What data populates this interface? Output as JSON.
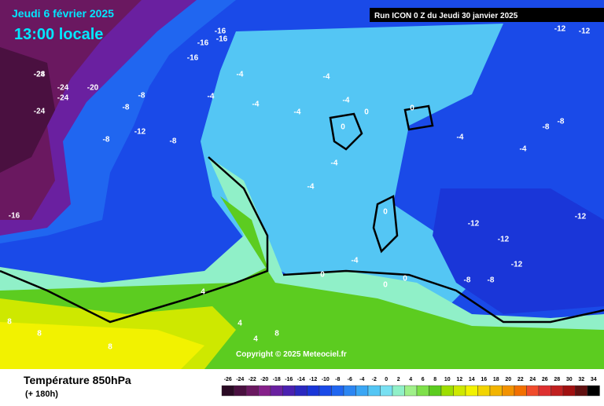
{
  "header": {
    "date": "Jeudi 6 février 2025",
    "time": "13:00 locale",
    "run": "Run ICON 0 Z du Jeudi 30 janvier 2025"
  },
  "copyright": "Copyright © 2025 Meteociel.fr",
  "footer": {
    "title": "Température 850hPa",
    "lead": "(+ 180h)"
  },
  "legend": {
    "labels": [
      "-26",
      "-24",
      "-22",
      "-20",
      "-18",
      "-16",
      "-14",
      "-12",
      "-10",
      "-8",
      "-6",
      "-4",
      "-2",
      "0",
      "2",
      "4",
      "6",
      "8",
      "10",
      "12",
      "14",
      "16",
      "18",
      "20",
      "22",
      "24",
      "26",
      "28",
      "30",
      "32",
      "34"
    ],
    "colors": [
      "#2a0a24",
      "#4a1040",
      "#6a1860",
      "#86208a",
      "#6a20a0",
      "#4a20b0",
      "#2a28c0",
      "#1a36d8",
      "#1a4ae8",
      "#2066f0",
      "#2c86f2",
      "#3aa6f4",
      "#54c6f4",
      "#78e0f2",
      "#90f0c8",
      "#a0f08a",
      "#7ee04a",
      "#5ccc20",
      "#9ede00",
      "#cee800",
      "#f2f200",
      "#f2d400",
      "#f2b400",
      "#f29200",
      "#f27000",
      "#f04c2c",
      "#de3030",
      "#c02020",
      "#a01010",
      "#601010",
      "#000000"
    ]
  },
  "map_labels": [
    "-24",
    "-28",
    "-24",
    "-24",
    "-20",
    "-24",
    "-16",
    "-16",
    "-16",
    "-16",
    "-16",
    "-8",
    "-8",
    "-12",
    "-8",
    "-8",
    "-4",
    "-4",
    "-4",
    "-4",
    "-4",
    "-4",
    "-4",
    "-4",
    "0",
    "0",
    "0",
    "0",
    "0",
    "0",
    "0",
    "-12",
    "-12",
    "-12",
    "-12",
    "-12",
    "-8",
    "-8",
    "-4",
    "-4",
    "4",
    "4",
    "4",
    "8",
    "8",
    "8",
    "8",
    "-8",
    "-8",
    "-12",
    "-4"
  ]
}
